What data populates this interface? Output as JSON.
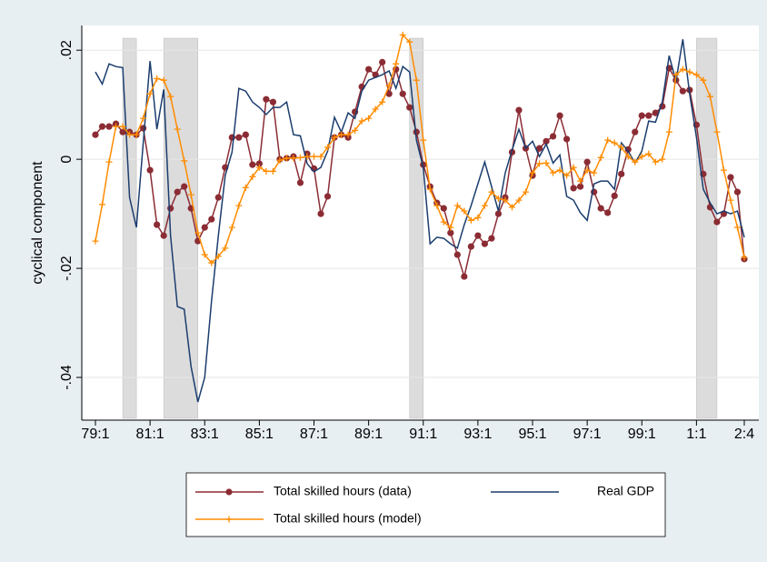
{
  "chart_data": {
    "type": "line",
    "ylabel": "cyclical component",
    "categories": [
      "79:1",
      null,
      null,
      null,
      null,
      null,
      null,
      null,
      "81:1",
      null,
      null,
      null,
      null,
      null,
      null,
      null,
      "83:1",
      null,
      null,
      null,
      null,
      null,
      null,
      null,
      "85:1",
      null,
      null,
      null,
      null,
      null,
      null,
      null,
      "87:1",
      null,
      null,
      null,
      null,
      null,
      null,
      null,
      "89:1",
      null,
      null,
      null,
      null,
      null,
      null,
      null,
      "91:1",
      null,
      null,
      null,
      null,
      null,
      null,
      null,
      "93:1",
      null,
      null,
      null,
      null,
      null,
      null,
      null,
      "95:1",
      null,
      null,
      null,
      null,
      null,
      null,
      null,
      "97:1",
      null,
      null,
      null,
      null,
      null,
      null,
      null,
      "99:1",
      null,
      null,
      null,
      null,
      null,
      null,
      null,
      "1:1",
      null,
      null,
      null,
      null,
      null,
      null,
      "2:4"
    ],
    "shaded_periods": [
      [
        4,
        6
      ],
      [
        10,
        15
      ],
      [
        46,
        48
      ],
      [
        88,
        91
      ]
    ],
    "ylim": [
      -0.0475,
      0.0222
    ],
    "yticks": [
      {
        "value": -0.04,
        "label": "-.04"
      },
      {
        "value": -0.02,
        "label": "-.02"
      },
      0,
      {
        "value": 0.02,
        "label": ".02"
      }
    ],
    "grid": true,
    "series": [
      {
        "name": "Total skilled hours (data)",
        "color": "#8b2c34",
        "marker": "circle",
        "values": [
          0.0045,
          0.006,
          0.006,
          0.0065,
          0.005,
          0.005,
          0.0045,
          0.0057,
          -0.002,
          -0.012,
          -0.014,
          -0.009,
          -0.006,
          -0.005,
          -0.009,
          -0.015,
          -0.0125,
          -0.011,
          -0.007,
          -0.0015,
          0.004,
          0.004,
          0.0045,
          -0.001,
          -0.0008,
          0.011,
          0.0105,
          0,
          0.0002,
          0.0005,
          -0.0043,
          0.001,
          -0.0017,
          -0.01,
          -0.0068,
          0.004,
          0.0045,
          0.004,
          0.0087,
          0.0133,
          0.0165,
          0.0155,
          0.0178,
          0.012,
          0.0165,
          0.012,
          0.0095,
          0.005,
          -0.001,
          -0.005,
          -0.008,
          -0.009,
          -0.0135,
          -0.0175,
          -0.0215,
          -0.016,
          -0.014,
          -0.0155,
          -0.0145,
          -0.01,
          -0.007,
          0.0013,
          0.009,
          0.002,
          -0.003,
          0.002,
          0.0033,
          0.0042,
          0.008,
          0.0037,
          -0.0053,
          -0.005,
          -0.0005,
          -0.006,
          -0.009,
          -0.0098,
          -0.0067,
          -0.0027,
          0.0018,
          0.005,
          0.008,
          0.008,
          0.0085,
          0.0097,
          0.0167,
          0.0145,
          0.0125,
          0.0127,
          0.0063,
          -0.0027,
          -0.0088,
          -0.0115,
          -0.01,
          -0.0033,
          -0.006,
          -0.0183
        ]
      },
      {
        "name": "Real GDP",
        "color": "#1b3d6e",
        "marker": "none",
        "values": [
          0.016,
          0.0138,
          0.0175,
          0.017,
          0.0168,
          -0.007,
          -0.0125,
          0.003,
          0.018,
          0.0055,
          0.0128,
          -0.014,
          -0.027,
          -0.0275,
          -0.038,
          -0.0445,
          -0.04,
          -0.026,
          -0.014,
          -0.003,
          0.0013,
          0.013,
          0.0125,
          0.0105,
          0.0095,
          0.0082,
          0.0095,
          0.0095,
          0.0105,
          0.0045,
          0.0043,
          -0.0008,
          -0.0023,
          -0.0015,
          0.0015,
          0.0077,
          0.005,
          0.0085,
          0.0075,
          0.0125,
          0.0145,
          0.015,
          0.0155,
          0.0162,
          0.013,
          0.017,
          0.016,
          0.0035,
          -0.0015,
          -0.0155,
          -0.0143,
          -0.0145,
          -0.0155,
          -0.0163,
          -0.012,
          -0.0085,
          -0.0045,
          -0.0005,
          -0.005,
          -0.0095,
          -0.0025,
          0.0017,
          0.0055,
          0.002,
          0.0033,
          0.0005,
          0.0028,
          -0.0007,
          0.0008,
          -0.0068,
          -0.0075,
          -0.0098,
          -0.0112,
          -0.0045,
          -0.004,
          -0.004,
          -0.0055,
          0.003,
          0.0015,
          -0.0007,
          0.0015,
          0.007,
          0.0068,
          0.0105,
          0.019,
          0.0143,
          0.022,
          0.012,
          0.004,
          -0.0055,
          -0.008,
          -0.01,
          -0.0095,
          -0.01,
          -0.0095,
          -0.0143
        ]
      },
      {
        "name": "Total skilled hours (model)",
        "color": "#ff8c00",
        "marker": "plus",
        "values": [
          -0.015,
          -0.0083,
          -0.0005,
          0.006,
          0.006,
          0.0045,
          0.0045,
          0.0075,
          0.012,
          0.0148,
          0.0145,
          0.0115,
          0.0055,
          -0.0003,
          -0.0065,
          -0.0135,
          -0.0175,
          -0.019,
          -0.0178,
          -0.0163,
          -0.0125,
          -0.0085,
          -0.0052,
          -0.0032,
          -0.0015,
          -0.0022,
          -0.0022,
          -0.0002,
          0.0002,
          0.0002,
          0.0003,
          0.0005,
          0.0005,
          0.0005,
          0.0022,
          0.004,
          0.0045,
          0.0045,
          0.0053,
          0.007,
          0.0075,
          0.0092,
          0.0105,
          0.0135,
          0.0175,
          0.0228,
          0.0215,
          0.0145,
          0.0035,
          -0.0055,
          -0.0085,
          -0.0115,
          -0.0125,
          -0.0085,
          -0.0095,
          -0.0112,
          -0.0107,
          -0.0085,
          -0.006,
          -0.0072,
          -0.0075,
          -0.0088,
          -0.0075,
          -0.006,
          -0.0025,
          -0.0008,
          -0.0007,
          -0.0025,
          -0.002,
          -0.003,
          -0.0015,
          -0.004,
          -0.002,
          -0.0025,
          0.0003,
          0.0035,
          0.003,
          0.0022,
          0.0005,
          -0.0005,
          0.0005,
          0.001,
          -0.0005,
          0,
          0.005,
          0.0155,
          0.0165,
          0.016,
          0.0155,
          0.0145,
          0.0115,
          0.005,
          -0.002,
          -0.0075,
          -0.0125,
          -0.018
        ]
      }
    ]
  }
}
